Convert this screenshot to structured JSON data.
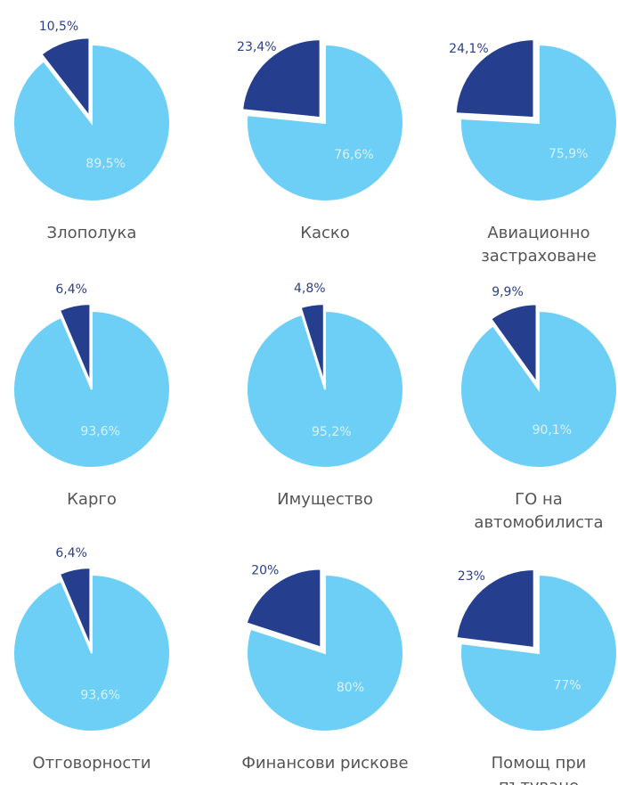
{
  "chart_data": [
    {
      "type": "pie",
      "title": "Злополука",
      "values": [
        10.5,
        89.5
      ],
      "value_labels": [
        "10,5%",
        "89,5%"
      ],
      "colors": [
        "#253f8e",
        "#6dcff6"
      ]
    },
    {
      "type": "pie",
      "title": "Каско",
      "values": [
        23.4,
        76.6
      ],
      "value_labels": [
        "23,4%",
        "76,6%"
      ],
      "colors": [
        "#253f8e",
        "#6dcff6"
      ]
    },
    {
      "type": "pie",
      "title": "Авиационно\nзастраховане",
      "values": [
        24.1,
        75.9
      ],
      "value_labels": [
        "24,1%",
        "75,9%"
      ],
      "colors": [
        "#253f8e",
        "#6dcff6"
      ]
    },
    {
      "type": "pie",
      "title": "Карго",
      "values": [
        6.4,
        93.6
      ],
      "value_labels": [
        "6,4%",
        "93,6%"
      ],
      "colors": [
        "#253f8e",
        "#6dcff6"
      ]
    },
    {
      "type": "pie",
      "title": "Имущество",
      "values": [
        4.8,
        95.2
      ],
      "value_labels": [
        "4,8%",
        "95,2%"
      ],
      "colors": [
        "#253f8e",
        "#6dcff6"
      ]
    },
    {
      "type": "pie",
      "title": "ГО на\nавтомобилиста",
      "values": [
        9.9,
        90.1
      ],
      "value_labels": [
        "9,9%",
        "90,1%"
      ],
      "colors": [
        "#253f8e",
        "#6dcff6"
      ]
    },
    {
      "type": "pie",
      "title": "Отговорности",
      "values": [
        6.4,
        93.6
      ],
      "value_labels": [
        "6,4%",
        "93,6%"
      ],
      "colors": [
        "#253f8e",
        "#6dcff6"
      ]
    },
    {
      "type": "pie",
      "title": "Финансови рискове",
      "values": [
        20,
        80
      ],
      "value_labels": [
        "20%",
        "80%"
      ],
      "colors": [
        "#253f8e",
        "#6dcff6"
      ]
    },
    {
      "type": "pie",
      "title": "Помощ при\nпътуване",
      "values": [
        23,
        77
      ],
      "value_labels": [
        "23%",
        "77%"
      ],
      "colors": [
        "#253f8e",
        "#6dcff6"
      ]
    }
  ]
}
